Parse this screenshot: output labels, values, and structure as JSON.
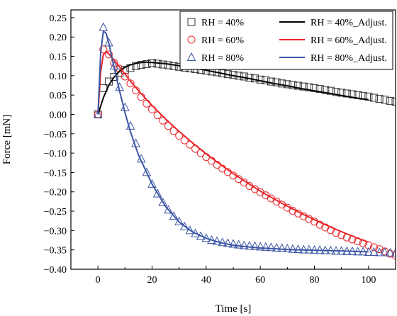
{
  "chart_data": {
    "type": "scatter",
    "xlabel": "Time [s]",
    "ylabel": "Force [mN]",
    "xlim": [
      -10,
      110
    ],
    "ylim": [
      -0.4,
      0.27
    ],
    "xticks": [
      0,
      20,
      40,
      60,
      80,
      100
    ],
    "yticks": [
      0.25,
      0.2,
      0.15,
      0.1,
      0.05,
      0.0,
      -0.05,
      -0.1,
      -0.15,
      -0.2,
      -0.25,
      -0.3,
      -0.35,
      -0.4
    ],
    "xtick_labels": [
      "0",
      "20",
      "40",
      "60",
      "80",
      "100"
    ],
    "ytick_labels": [
      "0.25",
      "0.20",
      "0.15",
      "0.10",
      "0.05",
      "0.00",
      "−0.05",
      "−0.10",
      "−0.15",
      "−0.20",
      "−0.25",
      "−0.30",
      "−0.35",
      "−0.40"
    ],
    "grid": false,
    "legend_position": "top-right",
    "series": [
      {
        "name": "RH = 40%",
        "kind": "points",
        "marker": "square",
        "color": "#333333",
        "x": [
          0,
          2,
          4,
          6,
          8,
          10,
          12,
          14,
          16,
          18,
          20,
          22,
          24,
          26,
          28,
          30,
          32,
          34,
          36,
          38,
          40,
          42,
          44,
          46,
          48,
          50,
          52,
          54,
          56,
          58,
          60,
          62,
          64,
          66,
          68,
          70,
          72,
          74,
          76,
          78,
          80,
          82,
          84,
          86,
          88,
          90,
          92,
          94,
          96,
          98,
          100,
          102,
          104,
          106,
          108,
          110
        ],
        "y": [
          0.0,
          0.068,
          0.085,
          0.097,
          0.108,
          0.115,
          0.12,
          0.125,
          0.128,
          0.13,
          0.133,
          0.131,
          0.129,
          0.127,
          0.125,
          0.123,
          0.121,
          0.119,
          0.117,
          0.115,
          0.113,
          0.111,
          0.109,
          0.106,
          0.104,
          0.102,
          0.1,
          0.098,
          0.095,
          0.093,
          0.09,
          0.088,
          0.085,
          0.083,
          0.08,
          0.078,
          0.076,
          0.074,
          0.072,
          0.07,
          0.068,
          0.066,
          0.063,
          0.061,
          0.058,
          0.056,
          0.054,
          0.052,
          0.05,
          0.048,
          0.046,
          0.043,
          0.04,
          0.038,
          0.035,
          0.033
        ]
      },
      {
        "name": "RH = 60%",
        "kind": "points",
        "marker": "circle",
        "color": "#e8262b",
        "x": [
          0,
          2,
          4,
          6,
          8,
          10,
          12,
          14,
          16,
          18,
          20,
          22,
          24,
          26,
          28,
          30,
          32,
          34,
          36,
          38,
          40,
          42,
          44,
          46,
          48,
          50,
          52,
          54,
          56,
          58,
          60,
          62,
          64,
          66,
          68,
          70,
          72,
          74,
          76,
          78,
          80,
          82,
          84,
          86,
          88,
          90,
          92,
          94,
          96,
          98,
          100,
          102,
          104,
          106,
          108,
          110
        ],
        "y": [
          0.0,
          0.168,
          0.155,
          0.133,
          0.118,
          0.098,
          0.08,
          0.062,
          0.045,
          0.028,
          0.013,
          -0.002,
          -0.016,
          -0.03,
          -0.043,
          -0.055,
          -0.067,
          -0.078,
          -0.089,
          -0.1,
          -0.11,
          -0.12,
          -0.13,
          -0.14,
          -0.149,
          -0.158,
          -0.167,
          -0.176,
          -0.185,
          -0.193,
          -0.201,
          -0.209,
          -0.217,
          -0.225,
          -0.233,
          -0.241,
          -0.249,
          -0.256,
          -0.263,
          -0.27,
          -0.277,
          -0.285,
          -0.292,
          -0.299,
          -0.306,
          -0.312,
          -0.318,
          -0.323,
          -0.328,
          -0.333,
          -0.338,
          -0.343,
          -0.348,
          -0.354,
          -0.36,
          -0.365
        ]
      },
      {
        "name": "RH = 80%",
        "kind": "points",
        "marker": "triangle",
        "color": "#3b55a4",
        "x": [
          0,
          2,
          4,
          6,
          8,
          10,
          12,
          14,
          16,
          18,
          20,
          22,
          24,
          26,
          28,
          30,
          32,
          34,
          36,
          38,
          40,
          42,
          44,
          46,
          48,
          50,
          52,
          54,
          56,
          58,
          60,
          62,
          64,
          66,
          68,
          70,
          72,
          74,
          76,
          78,
          80,
          82,
          84,
          86,
          88,
          90,
          92,
          94,
          96,
          98,
          100,
          102,
          104,
          106,
          108,
          110
        ],
        "y": [
          0.0,
          0.225,
          0.185,
          0.125,
          0.07,
          0.018,
          -0.03,
          -0.075,
          -0.115,
          -0.15,
          -0.18,
          -0.205,
          -0.228,
          -0.247,
          -0.263,
          -0.277,
          -0.29,
          -0.3,
          -0.308,
          -0.315,
          -0.32,
          -0.325,
          -0.328,
          -0.331,
          -0.333,
          -0.335,
          -0.337,
          -0.339,
          -0.34,
          -0.341,
          -0.342,
          -0.343,
          -0.344,
          -0.345,
          -0.346,
          -0.347,
          -0.348,
          -0.349,
          -0.35,
          -0.35,
          -0.351,
          -0.351,
          -0.352,
          -0.352,
          -0.353,
          -0.353,
          -0.354,
          -0.354,
          -0.355,
          -0.355,
          -0.356,
          -0.356,
          -0.357,
          -0.357,
          -0.358,
          -0.358
        ]
      },
      {
        "name": "RH = 40%_Adjust.",
        "kind": "line",
        "color": "#000000",
        "x": [
          0,
          2,
          4,
          6,
          8,
          10,
          12,
          14,
          16,
          18,
          20,
          25,
          30,
          35,
          40,
          45,
          50,
          55,
          60,
          65,
          70,
          75,
          80,
          85,
          90,
          95,
          100
        ],
        "y": [
          0.0,
          0.043,
          0.075,
          0.097,
          0.112,
          0.122,
          0.128,
          0.132,
          0.134,
          0.135,
          0.134,
          0.131,
          0.126,
          0.12,
          0.114,
          0.107,
          0.1,
          0.094,
          0.087,
          0.08,
          0.074,
          0.067,
          0.061,
          0.055,
          0.049,
          0.043,
          0.038
        ]
      },
      {
        "name": "RH = 60%_Adjust.",
        "kind": "line",
        "color": "#e8262b",
        "x": [
          0,
          1,
          2,
          3,
          4,
          6,
          8,
          10,
          12,
          15,
          20,
          25,
          30,
          35,
          40,
          45,
          50,
          55,
          60,
          65,
          70,
          75,
          80,
          85,
          90,
          95,
          100
        ],
        "y": [
          0.0,
          0.11,
          0.155,
          0.162,
          0.157,
          0.14,
          0.122,
          0.104,
          0.086,
          0.061,
          0.023,
          -0.012,
          -0.044,
          -0.074,
          -0.102,
          -0.128,
          -0.153,
          -0.176,
          -0.198,
          -0.218,
          -0.237,
          -0.255,
          -0.272,
          -0.288,
          -0.303,
          -0.317,
          -0.33
        ]
      },
      {
        "name": "RH = 80%_Adjust.",
        "kind": "line",
        "color": "#3b55a4",
        "x": [
          0,
          1,
          2,
          3,
          4,
          6,
          8,
          10,
          12,
          15,
          20,
          25,
          30,
          35,
          40,
          45,
          50,
          55,
          60,
          65,
          70,
          75,
          80,
          85,
          90,
          95,
          100
        ],
        "y": [
          0.0,
          0.16,
          0.215,
          0.21,
          0.185,
          0.12,
          0.06,
          0.005,
          -0.045,
          -0.105,
          -0.18,
          -0.238,
          -0.278,
          -0.304,
          -0.32,
          -0.331,
          -0.338,
          -0.342,
          -0.345,
          -0.347,
          -0.349,
          -0.35,
          -0.351,
          -0.352,
          -0.353,
          -0.354,
          -0.355
        ]
      }
    ],
    "legend_rows": [
      [
        0,
        3
      ],
      [
        1,
        4
      ],
      [
        2,
        5
      ]
    ]
  }
}
